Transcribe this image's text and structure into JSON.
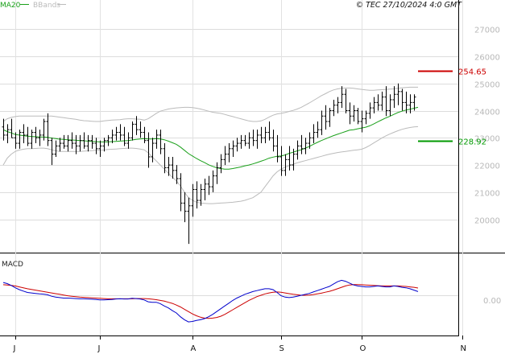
{
  "copyright": "© TEC 27/10/2024 4:0 GMT",
  "legend": {
    "ma_label": "MA20",
    "bb_label": "BBands",
    "ma_color": "#1aa01a",
    "bb_color": "#bbbbbb"
  },
  "levels": {
    "resistance": {
      "value": 25465,
      "label": "254.65",
      "color": "#cc0000"
    },
    "support": {
      "value": 22892,
      "label": "228.92",
      "color": "#009900"
    }
  },
  "macd": {
    "label": "MACD",
    "zero_label": "0.00",
    "macd_color": "#0000cc",
    "signal_color": "#cc0000"
  },
  "chart_data": {
    "type": "ohlc",
    "y_ticks": [
      20000,
      21000,
      22000,
      23000,
      24000,
      25000,
      26000,
      27000
    ],
    "y_tick_labels": [
      "20000",
      "21000",
      "22000",
      "23000",
      "24000",
      "25000",
      "26000",
      "27000"
    ],
    "ylim": [
      19000,
      28000
    ],
    "months": [
      "J",
      "J",
      "A",
      "S",
      "O",
      "N"
    ],
    "month_x_index": [
      3,
      24,
      47,
      69,
      89,
      114
    ],
    "bars": [
      [
        23400,
        23700,
        22900,
        23100
      ],
      [
        23100,
        23500,
        22800,
        23300
      ],
      [
        23300,
        23700,
        23000,
        23000
      ],
      [
        23000,
        23200,
        22600,
        22800
      ],
      [
        22800,
        23300,
        22600,
        23200
      ],
      [
        23200,
        23500,
        22800,
        23100
      ],
      [
        23100,
        23400,
        22700,
        22800
      ],
      [
        22800,
        23300,
        22600,
        23200
      ],
      [
        23200,
        23400,
        22800,
        23000
      ],
      [
        23000,
        23300,
        22700,
        23100
      ],
      [
        23100,
        23700,
        22900,
        23600
      ],
      [
        23600,
        23900,
        22700,
        22900
      ],
      [
        22900,
        23000,
        22000,
        22400
      ],
      [
        22400,
        22900,
        22300,
        22700
      ],
      [
        22700,
        23000,
        22500,
        22800
      ],
      [
        22800,
        23100,
        22600,
        22700
      ],
      [
        22700,
        23100,
        22500,
        22900
      ],
      [
        22900,
        23200,
        22600,
        22800
      ],
      [
        22800,
        23100,
        22400,
        22700
      ],
      [
        22700,
        23100,
        22500,
        22900
      ],
      [
        22900,
        23200,
        22600,
        22700
      ],
      [
        22700,
        23100,
        22500,
        22900
      ],
      [
        22900,
        23100,
        22600,
        22800
      ],
      [
        22800,
        23000,
        22400,
        22600
      ],
      [
        22600,
        22900,
        22300,
        22700
      ],
      [
        22700,
        23000,
        22500,
        22900
      ],
      [
        22900,
        23100,
        22700,
        23000
      ],
      [
        23000,
        23300,
        22800,
        23100
      ],
      [
        23100,
        23400,
        22900,
        23200
      ],
      [
        23200,
        23500,
        22900,
        23100
      ],
      [
        23100,
        23400,
        22700,
        22800
      ],
      [
        22800,
        23200,
        22600,
        23000
      ],
      [
        23000,
        23600,
        22900,
        23500
      ],
      [
        23500,
        23800,
        23100,
        23300
      ],
      [
        23300,
        23600,
        23000,
        23200
      ],
      [
        23200,
        23400,
        22800,
        22900
      ],
      [
        22900,
        23200,
        21900,
        22300
      ],
      [
        22300,
        23000,
        22100,
        22800
      ],
      [
        22800,
        23300,
        22600,
        23100
      ],
      [
        23100,
        23300,
        22400,
        22600
      ],
      [
        22600,
        22800,
        21700,
        21900
      ],
      [
        21900,
        22300,
        21600,
        22000
      ],
      [
        22000,
        22300,
        21500,
        21800
      ],
      [
        21800,
        22000,
        21300,
        21500
      ],
      [
        21500,
        21700,
        20300,
        20600
      ],
      [
        20600,
        21000,
        19900,
        20300
      ],
      [
        20300,
        20800,
        19100,
        20500
      ],
      [
        20500,
        21300,
        20100,
        21100
      ],
      [
        21100,
        21400,
        20400,
        20700
      ],
      [
        20700,
        21300,
        20500,
        21100
      ],
      [
        21100,
        21500,
        20700,
        21300
      ],
      [
        21300,
        21600,
        20900,
        21200
      ],
      [
        21200,
        21800,
        21000,
        21600
      ],
      [
        21600,
        22100,
        21300,
        21900
      ],
      [
        21900,
        22400,
        21700,
        22200
      ],
      [
        22200,
        22700,
        22000,
        22400
      ],
      [
        22400,
        22800,
        22100,
        22600
      ],
      [
        22600,
        22900,
        22300,
        22700
      ],
      [
        22700,
        23000,
        22500,
        22800
      ],
      [
        22800,
        23100,
        22600,
        22900
      ],
      [
        22900,
        23100,
        22700,
        22800
      ],
      [
        22800,
        23200,
        22600,
        23000
      ],
      [
        23000,
        23300,
        22700,
        22900
      ],
      [
        22900,
        23300,
        22600,
        23100
      ],
      [
        23100,
        23400,
        22800,
        23000
      ],
      [
        23000,
        23400,
        22800,
        23200
      ],
      [
        23200,
        23600,
        22900,
        23000
      ],
      [
        23000,
        23300,
        22500,
        22700
      ],
      [
        22700,
        23100,
        22100,
        22300
      ],
      [
        22300,
        22700,
        21600,
        21800
      ],
      [
        21800,
        22400,
        21600,
        22200
      ],
      [
        22200,
        22700,
        21800,
        22000
      ],
      [
        22000,
        22600,
        21800,
        22400
      ],
      [
        22400,
        22900,
        22200,
        22700
      ],
      [
        22700,
        23100,
        22400,
        22600
      ],
      [
        22600,
        23000,
        22400,
        22800
      ],
      [
        22800,
        23200,
        22600,
        23000
      ],
      [
        23000,
        23500,
        22800,
        23200
      ],
      [
        23200,
        23600,
        23000,
        23300
      ],
      [
        23300,
        24000,
        23100,
        23800
      ],
      [
        23800,
        24200,
        23300,
        23600
      ],
      [
        23600,
        24100,
        23400,
        24000
      ],
      [
        24000,
        24400,
        23800,
        24200
      ],
      [
        24200,
        24500,
        23900,
        24300
      ],
      [
        24300,
        24900,
        24100,
        24600
      ],
      [
        24600,
        24800,
        23900,
        24000
      ],
      [
        24000,
        24300,
        23500,
        23800
      ],
      [
        23800,
        24200,
        23600,
        24000
      ],
      [
        24000,
        24100,
        23500,
        23600
      ],
      [
        23600,
        24000,
        23200,
        23700
      ],
      [
        23700,
        24000,
        23500,
        23900
      ],
      [
        23900,
        24300,
        23700,
        24100
      ],
      [
        24100,
        24500,
        23900,
        24300
      ],
      [
        24300,
        24600,
        24000,
        24200
      ],
      [
        24200,
        24700,
        24000,
        24500
      ],
      [
        24500,
        24900,
        23800,
        24000
      ],
      [
        24000,
        24600,
        23800,
        24400
      ],
      [
        24400,
        24900,
        24100,
        24600
      ],
      [
        24600,
        25000,
        24200,
        24700
      ],
      [
        24700,
        24800,
        24000,
        24300
      ],
      [
        24300,
        24700,
        23900,
        24200
      ],
      [
        24200,
        24600,
        23900,
        24300
      ],
      [
        24300,
        24600,
        24000,
        24500
      ]
    ],
    "ma20": [
      23300,
      23230,
      23180,
      23120,
      23100,
      23080,
      23060,
      23050,
      23040,
      23030,
      23030,
      23020,
      22990,
      22970,
      22950,
      22940,
      22930,
      22920,
      22910,
      22900,
      22890,
      22880,
      22870,
      22860,
      22850,
      22850,
      22850,
      22860,
      22870,
      22880,
      22890,
      22900,
      22920,
      22940,
      22960,
      22970,
      22960,
      22960,
      22970,
      22960,
      22930,
      22880,
      22820,
      22760,
      22660,
      22540,
      22420,
      22330,
      22240,
      22160,
      22090,
      22010,
      21950,
      21900,
      21870,
      21850,
      21850,
      21870,
      21900,
      21930,
      21970,
      22000,
      22040,
      22090,
      22140,
      22190,
      22250,
      22290,
      22320,
      22330,
      22370,
      22430,
      22470,
      22520,
      22560,
      22620,
      22680,
      22760,
      22830,
      22900,
      22960,
      23020,
      23080,
      23130,
      23180,
      23230,
      23280,
      23300,
      23330,
      23360,
      23390,
      23440,
      23510,
      23590,
      23660,
      23730,
      23790,
      23860,
      23930,
      23980,
      24020,
      24050,
      24090,
      24120
    ],
    "bb_upper": [
      23600,
      23700,
      23750,
      23780,
      23800,
      23800,
      23800,
      23800,
      23800,
      23800,
      23800,
      23800,
      23800,
      23780,
      23760,
      23740,
      23720,
      23700,
      23680,
      23650,
      23630,
      23620,
      23610,
      23600,
      23600,
      23620,
      23640,
      23650,
      23660,
      23670,
      23690,
      23700,
      23700,
      23690,
      23680,
      23650,
      23700,
      23800,
      23900,
      23980,
      24020,
      24060,
      24080,
      24100,
      24110,
      24120,
      24120,
      24110,
      24090,
      24060,
      24020,
      23980,
      23940,
      23920,
      23900,
      23860,
      23820,
      23780,
      23740,
      23700,
      23660,
      23620,
      23600,
      23600,
      23620,
      23680,
      23760,
      23830,
      23880,
      23900,
      23930,
      23970,
      24010,
      24060,
      24120,
      24200,
      24280,
      24370,
      24460,
      24550,
      24620,
      24700,
      24760,
      24800,
      24820,
      24830,
      24830,
      24820,
      24800,
      24780,
      24760,
      24750,
      24750,
      24760,
      24770,
      24780,
      24790,
      24800,
      24820,
      24840,
      24850,
      24860,
      24860,
      24860
    ],
    "bb_lower": [
      22000,
      22250,
      22400,
      22500,
      22550,
      22580,
      22600,
      22600,
      22610,
      22620,
      22620,
      22600,
      22560,
      22530,
      22500,
      22500,
      22500,
      22500,
      22500,
      22500,
      22510,
      22520,
      22530,
      22540,
      22540,
      22550,
      22570,
      22580,
      22590,
      22600,
      22610,
      22620,
      22620,
      22610,
      22590,
      22560,
      22450,
      22300,
      22150,
      22000,
      21850,
      21700,
      21550,
      21420,
      21230,
      21000,
      20800,
      20700,
      20630,
      20600,
      20590,
      20580,
      20580,
      20590,
      20600,
      20610,
      20620,
      20630,
      20650,
      20670,
      20700,
      20750,
      20800,
      20900,
      21000,
      21200,
      21400,
      21600,
      21750,
      21850,
      21920,
      21980,
      22030,
      22080,
      22120,
      22160,
      22200,
      22240,
      22280,
      22320,
      22360,
      22400,
      22430,
      22460,
      22480,
      22500,
      22520,
      22540,
      22560,
      22580,
      22640,
      22720,
      22810,
      22900,
      22990,
      23070,
      23140,
      23200,
      23260,
      23310,
      23350,
      23380,
      23400,
      23410
    ],
    "macd": [
      0.55,
      0.5,
      0.42,
      0.32,
      0.24,
      0.18,
      0.12,
      0.1,
      0.08,
      0.06,
      0.05,
      0.02,
      -0.04,
      -0.08,
      -0.1,
      -0.12,
      -0.12,
      -0.13,
      -0.14,
      -0.15,
      -0.15,
      -0.16,
      -0.17,
      -0.18,
      -0.2,
      -0.2,
      -0.19,
      -0.18,
      -0.16,
      -0.15,
      -0.16,
      -0.16,
      -0.13,
      -0.14,
      -0.16,
      -0.2,
      -0.28,
      -0.3,
      -0.3,
      -0.36,
      -0.46,
      -0.54,
      -0.66,
      -0.76,
      -0.92,
      -1.05,
      -1.14,
      -1.12,
      -1.08,
      -1.05,
      -1.0,
      -0.92,
      -0.82,
      -0.7,
      -0.58,
      -0.46,
      -0.34,
      -0.22,
      -0.12,
      -0.04,
      0.04,
      0.1,
      0.16,
      0.2,
      0.24,
      0.28,
      0.28,
      0.24,
      0.12,
      -0.02,
      -0.08,
      -0.1,
      -0.08,
      -0.04,
      0.0,
      0.04,
      0.08,
      0.14,
      0.2,
      0.26,
      0.32,
      0.38,
      0.48,
      0.58,
      0.64,
      0.6,
      0.52,
      0.44,
      0.4,
      0.38,
      0.36,
      0.36,
      0.38,
      0.4,
      0.38,
      0.36,
      0.36,
      0.4,
      0.38,
      0.34,
      0.32,
      0.28,
      0.22,
      0.16
    ],
    "signal": [
      0.45,
      0.44,
      0.42,
      0.4,
      0.36,
      0.32,
      0.28,
      0.25,
      0.22,
      0.19,
      0.16,
      0.13,
      0.1,
      0.07,
      0.04,
      0.01,
      -0.02,
      -0.04,
      -0.06,
      -0.08,
      -0.09,
      -0.1,
      -0.11,
      -0.12,
      -0.13,
      -0.14,
      -0.15,
      -0.15,
      -0.15,
      -0.15,
      -0.15,
      -0.15,
      -0.15,
      -0.14,
      -0.14,
      -0.14,
      -0.15,
      -0.17,
      -0.19,
      -0.22,
      -0.25,
      -0.3,
      -0.35,
      -0.42,
      -0.5,
      -0.6,
      -0.7,
      -0.8,
      -0.88,
      -0.94,
      -0.98,
      -0.99,
      -0.98,
      -0.95,
      -0.9,
      -0.82,
      -0.72,
      -0.62,
      -0.52,
      -0.42,
      -0.32,
      -0.22,
      -0.14,
      -0.06,
      0.0,
      0.06,
      0.1,
      0.13,
      0.14,
      0.13,
      0.1,
      0.07,
      0.04,
      0.02,
      0.0,
      0.0,
      0.01,
      0.03,
      0.06,
      0.09,
      0.13,
      0.17,
      0.22,
      0.28,
      0.34,
      0.4,
      0.44,
      0.46,
      0.46,
      0.45,
      0.44,
      0.43,
      0.42,
      0.41,
      0.4,
      0.4,
      0.4,
      0.4,
      0.4,
      0.39,
      0.38,
      0.36,
      0.34,
      0.31
    ]
  }
}
